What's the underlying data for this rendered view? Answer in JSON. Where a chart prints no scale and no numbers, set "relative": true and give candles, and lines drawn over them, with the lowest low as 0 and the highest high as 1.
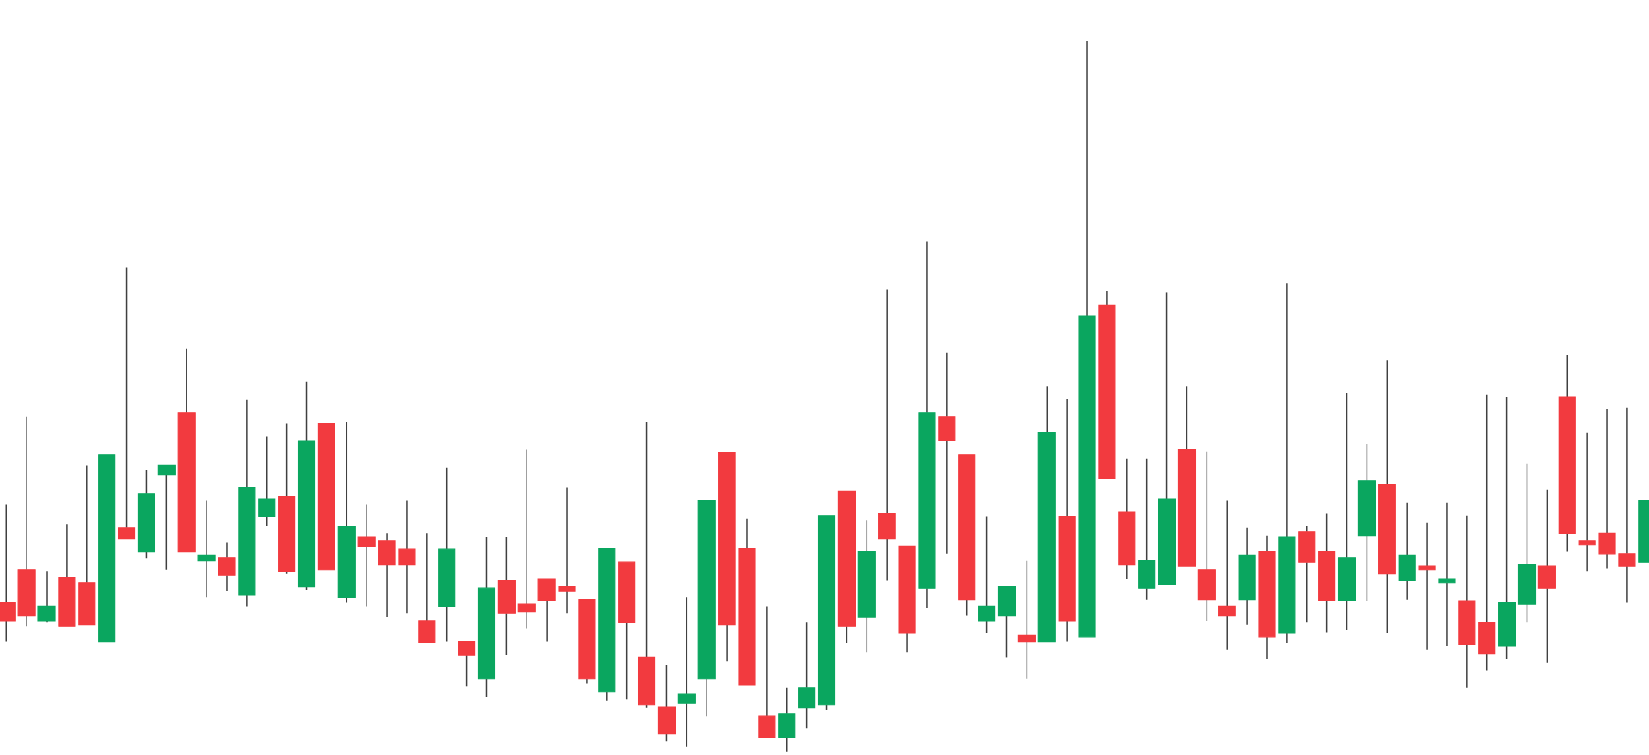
{
  "chart_data": {
    "type": "candlestick",
    "relative": true,
    "categories": [
      null,
      null,
      null,
      null,
      null,
      null,
      null,
      null,
      null,
      null,
      null,
      null,
      null,
      null,
      null,
      null,
      null,
      null,
      null,
      null,
      null,
      null,
      null,
      null,
      null,
      null,
      null,
      null,
      null,
      null,
      null,
      null,
      null,
      null,
      null,
      null,
      null,
      null,
      null,
      null,
      null,
      null,
      null,
      null,
      null,
      null,
      null,
      null,
      null,
      null,
      null,
      null,
      null,
      null,
      null,
      null,
      null,
      null,
      null,
      null,
      null,
      null,
      null,
      null,
      null,
      null,
      null,
      null,
      null,
      null,
      null,
      null,
      null,
      null,
      null,
      null,
      null,
      null,
      null,
      null,
      null,
      null,
      null
    ],
    "ohlc": [
      [
        0.21,
        0.349,
        0.156,
        0.185
      ],
      [
        0.256,
        0.472,
        0.177,
        0.192
      ],
      [
        0.185,
        0.254,
        0.182,
        0.205
      ],
      [
        0.246,
        0.321,
        0.177,
        0.177
      ],
      [
        0.238,
        0.403,
        0.179,
        0.179
      ],
      [
        0.156,
        0.418,
        0.156,
        0.418
      ],
      [
        0.315,
        0.682,
        0.3,
        0.3
      ],
      [
        0.282,
        0.397,
        0.272,
        0.364
      ],
      [
        0.39,
        0.403,
        0.256,
        0.403
      ],
      [
        0.477,
        0.567,
        0.282,
        0.282
      ],
      [
        0.269,
        0.354,
        0.218,
        0.277
      ],
      [
        0.274,
        0.295,
        0.226,
        0.249
      ],
      [
        0.221,
        0.495,
        0.205,
        0.372
      ],
      [
        0.331,
        0.444,
        0.318,
        0.356
      ],
      [
        0.359,
        0.462,
        0.251,
        0.254
      ],
      [
        0.233,
        0.521,
        0.228,
        0.438
      ],
      [
        0.462,
        0.462,
        0.256,
        0.256
      ],
      [
        0.218,
        0.464,
        0.21,
        0.318
      ],
      [
        0.303,
        0.349,
        0.205,
        0.29
      ],
      [
        0.297,
        0.308,
        0.19,
        0.264
      ],
      [
        0.285,
        0.354,
        0.195,
        0.264
      ],
      [
        0.185,
        0.308,
        0.154,
        0.154
      ],
      [
        0.205,
        0.4,
        0.156,
        0.285
      ],
      [
        0.156,
        0.156,
        0.092,
        0.136
      ],
      [
        0.103,
        0.303,
        0.077,
        0.231
      ],
      [
        0.241,
        0.303,
        0.136,
        0.195
      ],
      [
        0.208,
        0.426,
        0.174,
        0.197
      ],
      [
        0.244,
        0.244,
        0.156,
        0.213
      ],
      [
        0.233,
        0.372,
        0.195,
        0.226
      ],
      [
        0.215,
        0.215,
        0.097,
        0.103
      ],
      [
        0.085,
        0.287,
        0.072,
        0.287
      ],
      [
        0.267,
        0.267,
        0.074,
        0.182
      ],
      [
        0.133,
        0.464,
        0.062,
        0.067
      ],
      [
        0.064,
        0.123,
        0.015,
        0.026
      ],
      [
        0.069,
        0.218,
        0.008,
        0.082
      ],
      [
        0.103,
        0.354,
        0.051,
        0.354
      ],
      [
        0.421,
        0.421,
        0.128,
        0.179
      ],
      [
        0.287,
        0.328,
        0.095,
        0.095
      ],
      [
        0.051,
        0.205,
        0.021,
        0.021
      ],
      [
        0.021,
        0.09,
        0.0,
        0.054
      ],
      [
        0.062,
        0.182,
        0.033,
        0.09
      ],
      [
        0.067,
        0.333,
        0.059,
        0.333
      ],
      [
        0.367,
        0.367,
        0.154,
        0.177
      ],
      [
        0.19,
        0.326,
        0.141,
        0.282
      ],
      [
        0.336,
        0.651,
        0.241,
        0.3
      ],
      [
        0.29,
        0.29,
        0.141,
        0.167
      ],
      [
        0.231,
        0.718,
        0.203,
        0.477
      ],
      [
        0.472,
        0.562,
        0.279,
        0.438
      ],
      [
        0.418,
        0.418,
        0.192,
        0.215
      ],
      [
        0.185,
        0.331,
        0.167,
        0.205
      ],
      [
        0.192,
        0.233,
        0.133,
        0.233
      ],
      [
        0.164,
        0.269,
        0.103,
        0.156
      ],
      [
        0.156,
        0.515,
        0.156,
        0.449
      ],
      [
        0.331,
        0.497,
        0.156,
        0.185
      ],
      [
        0.162,
        1.0,
        0.162,
        0.613
      ],
      [
        0.628,
        0.649,
        0.385,
        0.385
      ],
      [
        0.338,
        0.413,
        0.244,
        0.264
      ],
      [
        0.231,
        0.413,
        0.215,
        0.269
      ],
      [
        0.236,
        0.646,
        0.236,
        0.356
      ],
      [
        0.426,
        0.515,
        0.262,
        0.262
      ],
      [
        0.256,
        0.423,
        0.185,
        0.215
      ],
      [
        0.205,
        0.354,
        0.144,
        0.192
      ],
      [
        0.215,
        0.315,
        0.179,
        0.277
      ],
      [
        0.282,
        0.305,
        0.131,
        0.162
      ],
      [
        0.167,
        0.659,
        0.154,
        0.303
      ],
      [
        0.31,
        0.318,
        0.182,
        0.267
      ],
      [
        0.282,
        0.336,
        0.169,
        0.213
      ],
      [
        0.213,
        0.505,
        0.172,
        0.274
      ],
      [
        0.305,
        0.433,
        0.213,
        0.382
      ],
      [
        0.377,
        0.551,
        0.167,
        0.251
      ],
      [
        0.241,
        0.351,
        0.215,
        0.277
      ],
      [
        0.262,
        0.323,
        0.144,
        0.256
      ],
      [
        0.238,
        0.351,
        0.149,
        0.244
      ],
      [
        0.213,
        0.333,
        0.09,
        0.151
      ],
      [
        0.182,
        0.503,
        0.115,
        0.138
      ],
      [
        0.149,
        0.5,
        0.131,
        0.21
      ],
      [
        0.208,
        0.405,
        0.182,
        0.264
      ],
      [
        0.262,
        0.369,
        0.126,
        0.231
      ],
      [
        0.5,
        0.559,
        0.282,
        0.308
      ],
      [
        0.297,
        0.449,
        0.254,
        0.292
      ],
      [
        0.308,
        0.482,
        0.259,
        0.279
      ],
      [
        0.279,
        0.485,
        0.21,
        0.262
      ],
      [
        0.267,
        0.354,
        0.267,
        0.354
      ]
    ],
    "colors": [
      "#f23a3f",
      "#f23a3f",
      "#0aa65f",
      "#f23a3f",
      "#f23a3f",
      "#0aa65f",
      "#f23a3f",
      "#0aa65f",
      "#0aa65f",
      "#f23a3f",
      "#0aa65f",
      "#f23a3f",
      "#0aa65f",
      "#0aa65f",
      "#f23a3f",
      "#0aa65f",
      "#f23a3f",
      "#0aa65f",
      "#f23a3f",
      "#f23a3f",
      "#f23a3f",
      "#f23a3f",
      "#0aa65f",
      "#f23a3f",
      "#0aa65f",
      "#f23a3f",
      "#f23a3f",
      "#f23a3f",
      "#f23a3f",
      "#f23a3f",
      "#0aa65f",
      "#f23a3f",
      "#f23a3f",
      "#f23a3f",
      "#0aa65f",
      "#0aa65f",
      "#f23a3f",
      "#f23a3f",
      "#f23a3f",
      "#0aa65f",
      "#0aa65f",
      "#0aa65f",
      "#f23a3f",
      "#0aa65f",
      "#f23a3f",
      "#f23a3f",
      "#0aa65f",
      "#f23a3f",
      "#f23a3f",
      "#0aa65f",
      "#0aa65f",
      "#f23a3f",
      "#0aa65f",
      "#f23a3f",
      "#0aa65f",
      "#f23a3f",
      "#f23a3f",
      "#0aa65f",
      "#0aa65f",
      "#f23a3f",
      "#f23a3f",
      "#f23a3f",
      "#0aa65f",
      "#f23a3f",
      "#0aa65f",
      "#f23a3f",
      "#f23a3f",
      "#0aa65f",
      "#0aa65f",
      "#f23a3f",
      "#0aa65f",
      "#f23a3f",
      "#0aa65f",
      "#f23a3f",
      "#f23a3f",
      "#0aa65f",
      "#0aa65f",
      "#f23a3f",
      "#f23a3f",
      "#f23a3f",
      "#f23a3f",
      "#f23a3f",
      "#0aa65f"
    ]
  }
}
